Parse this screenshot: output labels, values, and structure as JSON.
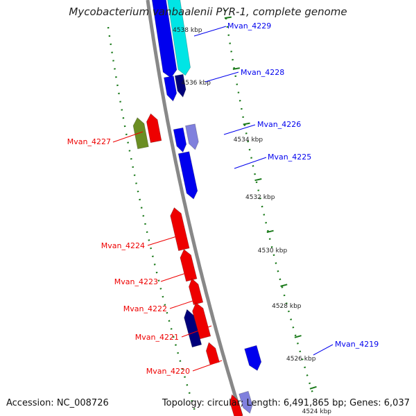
{
  "title": "Mycobacterium vanbaalenii PYR-1, complete genome",
  "footer": {
    "accession": "Accession: NC_008726",
    "stats": "Topology: circular; Length: 6,491,865 bp; Genes: 6,037"
  },
  "colors": {
    "forward_gene": "#0000ee",
    "reverse_gene": "#ee0000",
    "backbone": "#888888",
    "tick": "#1a7a1a",
    "cyan_gene": "#00e5e5",
    "light_purple_gene": "#8080dd",
    "navy_gene": "#00007a",
    "olive_gene": "#6b8e23"
  },
  "ticks": [
    {
      "label": "4538 kbp"
    },
    {
      "label": "4536 kbp"
    },
    {
      "label": "4534 kbp"
    },
    {
      "label": "4532 kbp"
    },
    {
      "label": "4530 kbp"
    },
    {
      "label": "4528 kbp"
    },
    {
      "label": "4526 kbp"
    },
    {
      "label": "4524 kbp"
    }
  ],
  "gene_labels": [
    {
      "name": "Mvan_4229",
      "strand": "forward"
    },
    {
      "name": "Mvan_4228",
      "strand": "forward"
    },
    {
      "name": "Mvan_4226",
      "strand": "forward"
    },
    {
      "name": "Mvan_4225",
      "strand": "forward"
    },
    {
      "name": "Mvan_4219",
      "strand": "forward"
    },
    {
      "name": "Mvan_4227",
      "strand": "reverse"
    },
    {
      "name": "Mvan_4224",
      "strand": "reverse"
    },
    {
      "name": "Mvan_4223",
      "strand": "reverse"
    },
    {
      "name": "Mvan_4222",
      "strand": "reverse"
    },
    {
      "name": "Mvan_4221",
      "strand": "reverse"
    },
    {
      "name": "Mvan_4220",
      "strand": "reverse"
    }
  ]
}
